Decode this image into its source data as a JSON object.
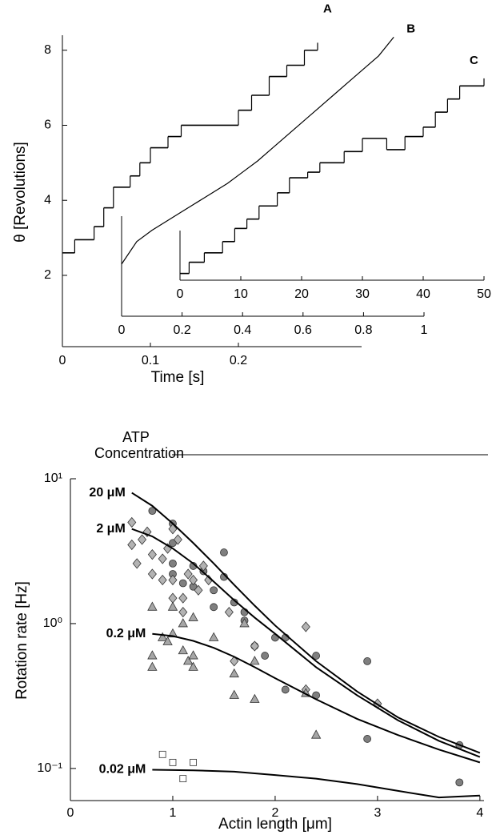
{
  "chart_data": [
    {
      "type": "line",
      "ylabel": "θ [Revolutions]",
      "xlabel": "Time [s]",
      "ylim": [
        0.1,
        8.4
      ],
      "yticks": [
        2,
        4,
        6,
        8
      ],
      "series": [
        {
          "name": "A",
          "color": "#000000",
          "step": true,
          "xlim": [
            0,
            0.34
          ],
          "xticks": [
            0,
            0.1,
            0.2
          ],
          "x": [
            0,
            0.014,
            0.036,
            0.047,
            0.058,
            0.077,
            0.088,
            0.1,
            0.12,
            0.135,
            0.2,
            0.215,
            0.235,
            0.255,
            0.275,
            0.29
          ],
          "values": [
            2.6,
            2.95,
            3.3,
            3.8,
            4.35,
            4.65,
            5.0,
            5.4,
            5.7,
            6.0,
            6.4,
            6.8,
            7.3,
            7.6,
            8.0,
            8.2
          ]
        },
        {
          "name": "B",
          "color": "#000000",
          "step": false,
          "xlim": [
            0,
            1
          ],
          "xticks": [
            0,
            0.2,
            0.4,
            0.6,
            0.8,
            1
          ],
          "x": [
            0,
            0.05,
            0.1,
            0.15,
            0.2,
            0.25,
            0.3,
            0.35,
            0.4,
            0.45,
            0.5,
            0.55,
            0.6,
            0.65,
            0.7,
            0.75,
            0.8,
            0.85,
            0.9
          ],
          "values": [
            2.3,
            2.9,
            3.2,
            3.45,
            3.7,
            3.95,
            4.2,
            4.45,
            4.75,
            5.05,
            5.4,
            5.75,
            6.1,
            6.45,
            6.8,
            7.15,
            7.5,
            7.85,
            8.35
          ]
        },
        {
          "name": "C",
          "color": "#000000",
          "step": true,
          "xlim": [
            0,
            50
          ],
          "xticks": [
            0,
            10,
            20,
            30,
            40,
            50
          ],
          "x": [
            0,
            1.5,
            4,
            7,
            9,
            11,
            13,
            16,
            18,
            21,
            23,
            27,
            30,
            34,
            37,
            40,
            42,
            44,
            46,
            50
          ],
          "values": [
            2.05,
            2.35,
            2.6,
            2.9,
            3.25,
            3.5,
            3.85,
            4.2,
            4.6,
            4.75,
            5.0,
            5.3,
            5.65,
            5.35,
            5.7,
            5.95,
            6.35,
            6.7,
            7.05,
            7.25
          ]
        }
      ]
    },
    {
      "type": "scatter",
      "legend_title": "ATP Concentration",
      "xlabel": "Actin length [μm]",
      "ylabel": "Rotation rate [Hz]",
      "log_y": true,
      "xlim": [
        0,
        4.04
      ],
      "xticks": [
        0,
        1,
        2,
        3,
        4
      ],
      "ylim": [
        0.06,
        10
      ],
      "yticks": [
        {
          "value": 0.1,
          "label": "10⁻¹"
        },
        {
          "value": 1,
          "label": "10⁰"
        },
        {
          "value": 10,
          "label": "10¹"
        }
      ],
      "series": [
        {
          "name": "20 μM",
          "color": "#7f7f7f",
          "marker": "circle",
          "x": [
            0.8,
            1.0,
            1.0,
            1.0,
            1.0,
            1.1,
            1.2,
            1.2,
            1.3,
            1.4,
            1.4,
            1.5,
            1.5,
            1.6,
            1.7,
            1.7,
            1.8,
            1.9,
            2.0,
            2.1,
            2.1,
            2.4,
            2.4,
            2.9,
            2.9,
            3.8,
            3.8
          ],
          "values": [
            6.0,
            4.9,
            3.6,
            2.6,
            2.2,
            1.9,
            2.5,
            1.8,
            2.3,
            1.7,
            1.3,
            3.1,
            2.1,
            1.4,
            1.2,
            1.05,
            0.7,
            0.6,
            0.8,
            0.8,
            0.35,
            0.6,
            0.32,
            0.55,
            0.16,
            0.145,
            0.08
          ],
          "fit": {
            "x": [
              0.6,
              0.8,
              1,
              1.2,
              1.4,
              1.6,
              1.8,
              2,
              2.4,
              2.8,
              3.2,
              3.6,
              4
            ],
            "values": [
              8.0,
              6.5,
              4.9,
              3.6,
              2.6,
              1.85,
              1.33,
              0.97,
              0.55,
              0.34,
              0.225,
              0.165,
              0.128
            ]
          }
        },
        {
          "name": "2 μM",
          "color": "#b3b3b3",
          "marker": "diamond",
          "x": [
            0.6,
            0.6,
            0.65,
            0.7,
            0.75,
            0.8,
            0.8,
            0.9,
            0.9,
            0.95,
            1.0,
            1.0,
            1.0,
            1.05,
            1.1,
            1.1,
            1.15,
            1.2,
            1.25,
            1.3,
            1.35,
            1.55,
            1.6,
            1.8,
            2.3,
            2.3,
            3.0
          ],
          "values": [
            5.0,
            3.5,
            2.6,
            3.8,
            4.3,
            3.0,
            2.2,
            2.0,
            2.8,
            3.3,
            4.5,
            2.0,
            1.5,
            3.8,
            1.5,
            1.2,
            2.2,
            2.0,
            1.7,
            2.5,
            2.0,
            1.2,
            0.55,
            0.7,
            0.95,
            0.35,
            0.28
          ],
          "fit": {
            "x": [
              0.6,
              0.8,
              1,
              1.2,
              1.4,
              1.6,
              1.8,
              2,
              2.4,
              2.8,
              3.2,
              3.6,
              4
            ],
            "values": [
              4.5,
              4.0,
              3.3,
              2.6,
              1.95,
              1.45,
              1.1,
              0.85,
              0.5,
              0.32,
              0.215,
              0.155,
              0.12
            ]
          }
        },
        {
          "name": "0.2 μM",
          "color": "#a6a6a6",
          "marker": "triangle",
          "x": [
            0.8,
            0.8,
            0.8,
            0.9,
            0.95,
            1.0,
            1.0,
            1.1,
            1.1,
            1.15,
            1.2,
            1.2,
            1.2,
            1.4,
            1.6,
            1.6,
            1.7,
            1.8,
            1.8,
            2.3,
            2.4
          ],
          "values": [
            1.3,
            0.6,
            0.5,
            0.8,
            0.75,
            1.3,
            0.85,
            1.0,
            0.65,
            0.55,
            1.1,
            0.6,
            0.5,
            0.8,
            0.45,
            0.32,
            1.0,
            0.55,
            0.3,
            0.33,
            0.17
          ],
          "fit": {
            "x": [
              0.8,
              1,
              1.2,
              1.4,
              1.6,
              1.8,
              2,
              2.4,
              2.8,
              3.2,
              3.6,
              4
            ],
            "values": [
              0.85,
              0.82,
              0.76,
              0.68,
              0.59,
              0.5,
              0.42,
              0.3,
              0.22,
              0.17,
              0.135,
              0.11
            ]
          }
        },
        {
          "name": "0.02 μM",
          "color": "#ffffff",
          "marker": "square",
          "x": [
            0.9,
            1.0,
            1.1,
            1.2
          ],
          "values": [
            0.125,
            0.11,
            0.085,
            0.11
          ],
          "fit": {
            "x": [
              0.8,
              1.2,
              1.6,
              2,
              2.4,
              2.8,
              3.2,
              3.6,
              4
            ],
            "values": [
              0.098,
              0.097,
              0.095,
              0.09,
              0.085,
              0.078,
              0.07,
              0.063,
              0.065
            ]
          }
        }
      ]
    }
  ]
}
